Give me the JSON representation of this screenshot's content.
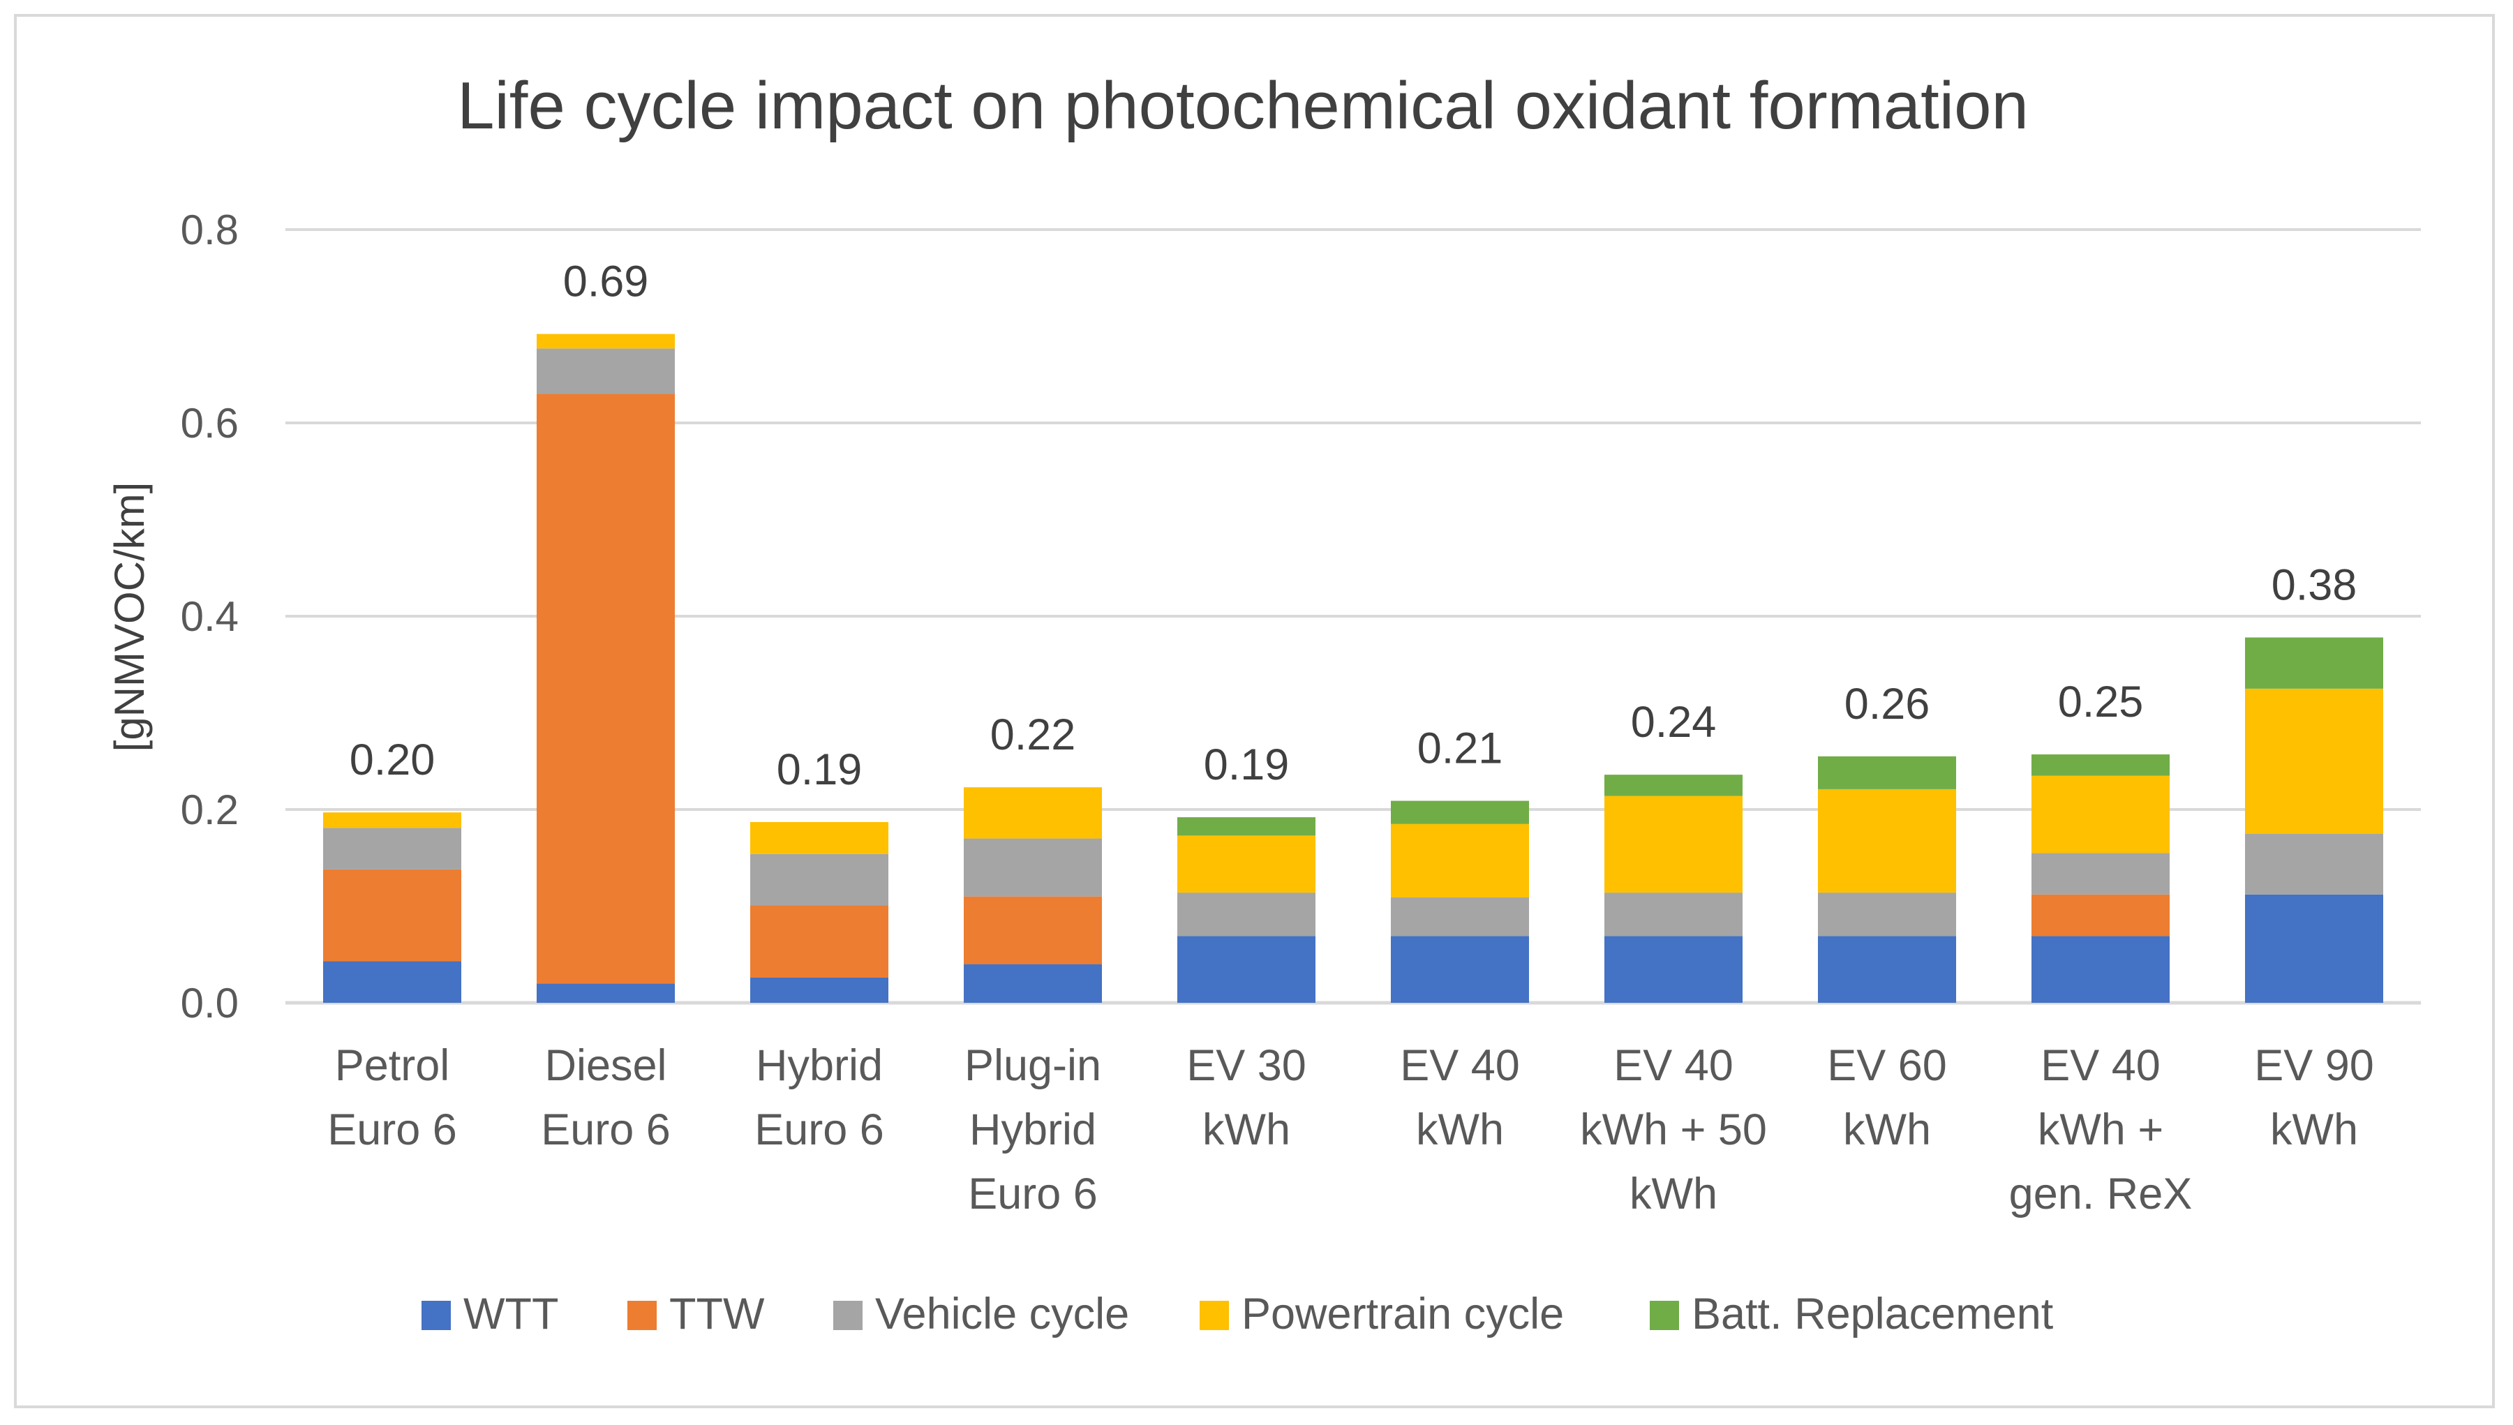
{
  "chart_data": {
    "type": "bar",
    "stacked": true,
    "title": "Life cycle impact on photochemical oxidant formation",
    "xlabel": "",
    "ylabel": "[gNMVOC/km]",
    "ylim": [
      0,
      0.8
    ],
    "yticks": [
      "0.0",
      "0.2",
      "0.4",
      "0.6",
      "0.8"
    ],
    "ytick_values": [
      0,
      0.2,
      0.4,
      0.6,
      0.8
    ],
    "grid": true,
    "legend_position": "bottom",
    "categories": [
      [
        "Petrol",
        "Euro 6"
      ],
      [
        "Diesel",
        "Euro 6"
      ],
      [
        "Hybrid",
        "Euro 6"
      ],
      [
        "Plug-in",
        "Hybrid",
        "Euro 6"
      ],
      [
        "EV 30",
        "kWh"
      ],
      [
        "EV 40",
        "kWh"
      ],
      [
        "EV 40",
        "kWh + 50",
        "kWh"
      ],
      [
        "EV 60",
        "kWh"
      ],
      [
        "EV 40",
        "kWh +",
        "gen. ReX"
      ],
      [
        "EV 90",
        "kWh"
      ]
    ],
    "series": [
      {
        "name": "WTT",
        "color": "#4472c4",
        "values": [
          0.043,
          0.02,
          0.026,
          0.04,
          0.069,
          0.069,
          0.069,
          0.069,
          0.069,
          0.112
        ]
      },
      {
        "name": "TTW",
        "color": "#ed7d31",
        "values": [
          0.095,
          0.61,
          0.075,
          0.07,
          0.0,
          0.0,
          0.0,
          0.0,
          0.043,
          0.0
        ]
      },
      {
        "name": "Vehicle cycle",
        "color": "#a5a5a5",
        "values": [
          0.043,
          0.047,
          0.053,
          0.06,
          0.045,
          0.04,
          0.045,
          0.045,
          0.043,
          0.063
        ]
      },
      {
        "name": "Powertrain cycle",
        "color": "#ffc000",
        "values": [
          0.016,
          0.015,
          0.033,
          0.053,
          0.059,
          0.076,
          0.1,
          0.107,
          0.08,
          0.15
        ]
      },
      {
        "name": "Batt. Replacement",
        "color": "#70ad47",
        "values": [
          0.0,
          0.0,
          0.0,
          0.0,
          0.019,
          0.024,
          0.022,
          0.034,
          0.022,
          0.053
        ]
      }
    ],
    "totals": [
      "0.20",
      "0.69",
      "0.19",
      "0.22",
      "0.19",
      "0.21",
      "0.24",
      "0.26",
      "0.25",
      "0.38"
    ],
    "colors": {
      "grid": "#d9d9d9",
      "axis": "#d9d9d9"
    }
  }
}
